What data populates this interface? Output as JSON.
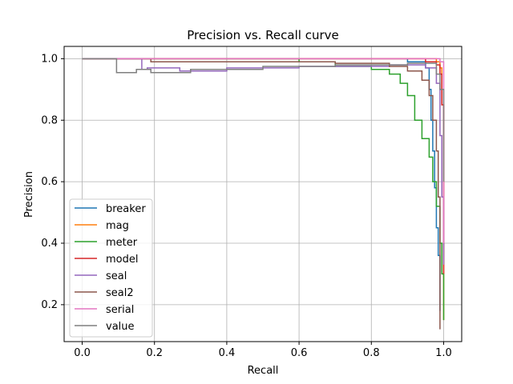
{
  "chart_data": {
    "type": "line",
    "title": "Precision vs. Recall curve",
    "xlabel": "Recall",
    "ylabel": "Precision",
    "xlim": [
      -0.05,
      1.05
    ],
    "ylim": [
      0.08,
      1.04
    ],
    "xticks": [
      0.0,
      0.2,
      0.4,
      0.6,
      0.8,
      1.0
    ],
    "yticks": [
      0.2,
      0.4,
      0.6,
      0.8,
      1.0
    ],
    "xtick_labels": [
      "0.0",
      "0.2",
      "0.4",
      "0.6",
      "0.8",
      "1.0"
    ],
    "ytick_labels": [
      "0.2",
      "0.4",
      "0.6",
      "0.8",
      "1.0"
    ],
    "grid": true,
    "legend_position": "lower-left",
    "series": [
      {
        "name": "breaker",
        "color": "#1f77b4",
        "points": [
          [
            0,
            1.0
          ],
          [
            0.5,
            1.0
          ],
          [
            0.9,
            0.99
          ],
          [
            0.95,
            0.97
          ],
          [
            0.96,
            0.9
          ],
          [
            0.965,
            0.8
          ],
          [
            0.97,
            0.7
          ],
          [
            0.975,
            0.58
          ],
          [
            0.98,
            0.45
          ],
          [
            0.985,
            0.36
          ],
          [
            0.99,
            0.3
          ],
          [
            0.99,
            0.18
          ]
        ]
      },
      {
        "name": "mag",
        "color": "#ff7f0e",
        "points": [
          [
            0,
            1.0
          ],
          [
            0.9,
            1.0
          ],
          [
            0.98,
            0.99
          ],
          [
            0.99,
            0.97
          ],
          [
            0.995,
            0.85
          ],
          [
            1.0,
            0.6
          ],
          [
            1.0,
            0.15
          ]
        ]
      },
      {
        "name": "meter",
        "color": "#2ca02c",
        "points": [
          [
            0,
            1.0
          ],
          [
            0.6,
            0.99
          ],
          [
            0.7,
            0.975
          ],
          [
            0.8,
            0.965
          ],
          [
            0.85,
            0.95
          ],
          [
            0.88,
            0.92
          ],
          [
            0.9,
            0.88
          ],
          [
            0.92,
            0.8
          ],
          [
            0.94,
            0.74
          ],
          [
            0.96,
            0.68
          ],
          [
            0.97,
            0.6
          ],
          [
            0.98,
            0.52
          ],
          [
            0.99,
            0.4
          ],
          [
            0.995,
            0.3
          ],
          [
            1.0,
            0.15
          ]
        ]
      },
      {
        "name": "model",
        "color": "#d62728",
        "points": [
          [
            0,
            1.0
          ],
          [
            0.8,
            1.0
          ],
          [
            0.95,
            0.99
          ],
          [
            0.98,
            0.98
          ],
          [
            0.99,
            0.95
          ],
          [
            0.995,
            0.85
          ],
          [
            1.0,
            0.7
          ],
          [
            1.0,
            0.5
          ],
          [
            1.0,
            0.3
          ]
        ]
      },
      {
        "name": "seal",
        "color": "#9467bd",
        "points": [
          [
            0,
            1.0
          ],
          [
            0.16,
            1.0
          ],
          [
            0.165,
            0.965
          ],
          [
            0.18,
            0.97
          ],
          [
            0.27,
            0.96
          ],
          [
            0.4,
            0.97
          ],
          [
            0.6,
            0.975
          ],
          [
            0.85,
            0.98
          ],
          [
            0.95,
            0.97
          ],
          [
            0.98,
            0.92
          ],
          [
            0.99,
            0.75
          ],
          [
            0.995,
            0.55
          ],
          [
            1.0,
            0.33
          ]
        ]
      },
      {
        "name": "seal2",
        "color": "#8c564b",
        "points": [
          [
            0,
            1.0
          ],
          [
            0.19,
            0.99
          ],
          [
            0.3,
            0.99
          ],
          [
            0.5,
            0.99
          ],
          [
            0.7,
            0.985
          ],
          [
            0.85,
            0.975
          ],
          [
            0.9,
            0.96
          ],
          [
            0.94,
            0.93
          ],
          [
            0.96,
            0.88
          ],
          [
            0.97,
            0.8
          ],
          [
            0.98,
            0.7
          ],
          [
            0.985,
            0.55
          ],
          [
            0.99,
            0.4
          ],
          [
            0.99,
            0.12
          ]
        ]
      },
      {
        "name": "serial",
        "color": "#e377c2",
        "points": [
          [
            0,
            1.0
          ],
          [
            0.95,
            1.0
          ],
          [
            0.99,
            0.99
          ],
          [
            1.0,
            0.95
          ],
          [
            1.0,
            0.4
          ]
        ]
      },
      {
        "name": "value",
        "color": "#7f7f7f",
        "points": [
          [
            0,
            1.0
          ],
          [
            0.095,
            1.0
          ],
          [
            0.095,
            0.955
          ],
          [
            0.15,
            0.965
          ],
          [
            0.19,
            0.955
          ],
          [
            0.3,
            0.965
          ],
          [
            0.5,
            0.975
          ],
          [
            0.7,
            0.98
          ],
          [
            0.9,
            0.985
          ],
          [
            0.95,
            0.985
          ],
          [
            0.98,
            0.95
          ],
          [
            0.99,
            0.9
          ],
          [
            1.0,
            0.85
          ],
          [
            1.0,
            0.6
          ]
        ]
      }
    ]
  }
}
